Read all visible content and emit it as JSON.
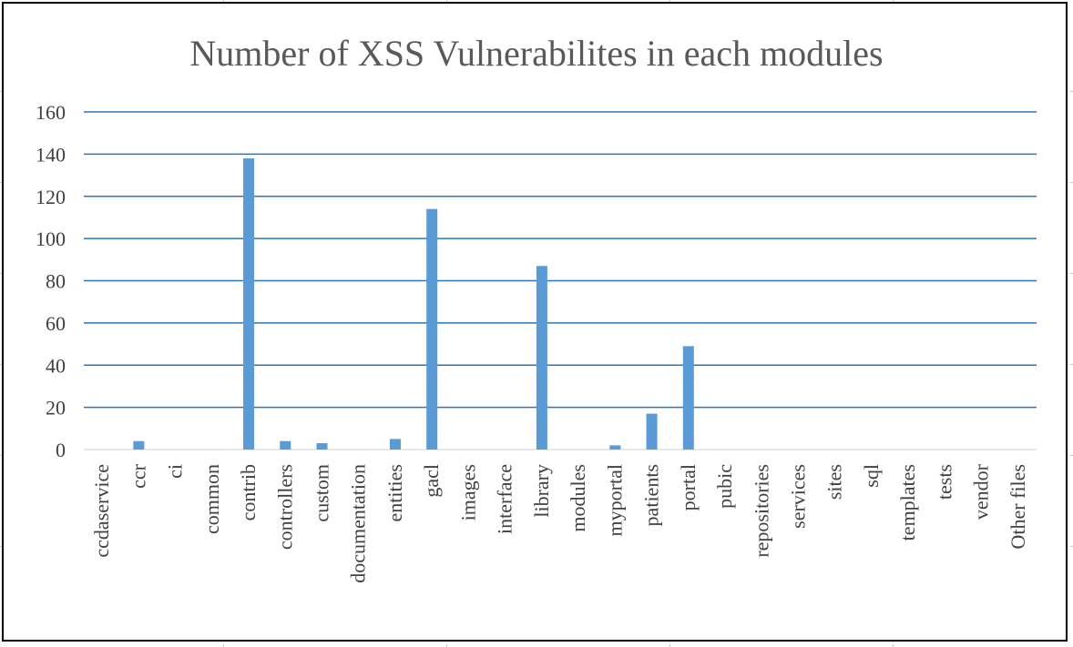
{
  "chart_data": {
    "type": "bar",
    "title": "Number of XSS Vulnerabilites in each modules",
    "xlabel": "",
    "ylabel": "",
    "ylim": [
      0,
      160
    ],
    "yticks": [
      0,
      20,
      40,
      60,
      80,
      100,
      120,
      140,
      160
    ],
    "grid": true,
    "legend": "none",
    "bar_color": "#5b9bd5",
    "grid_color": "#2e75b6",
    "categories": [
      "ccdaservice",
      "ccr",
      "ci",
      "common",
      "contrib",
      "controllers",
      "custom",
      "documentation",
      "entities",
      "gacl",
      "images",
      "interface",
      "library",
      "modules",
      "myportal",
      "patients",
      "portal",
      "pubic",
      "repositories",
      "services",
      "sites",
      "sql",
      "templates",
      "tests",
      "vendor",
      "Other files"
    ],
    "values": [
      0,
      4,
      0,
      0,
      138,
      4,
      3,
      0,
      5,
      114,
      0,
      0,
      87,
      0,
      2,
      17,
      49,
      0,
      0,
      0,
      0,
      0,
      0,
      0,
      0,
      0
    ]
  }
}
